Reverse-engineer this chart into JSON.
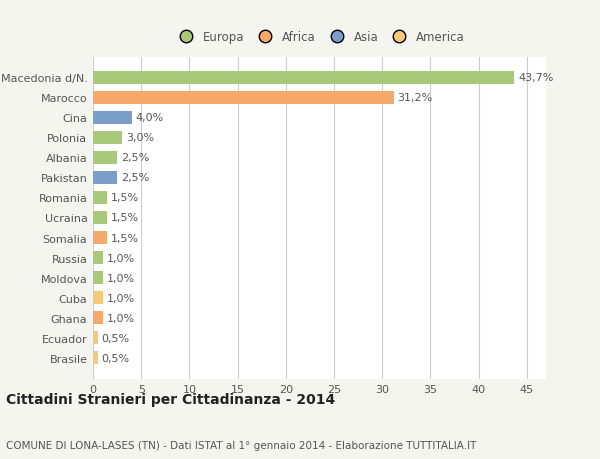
{
  "categories": [
    "Brasile",
    "Ecuador",
    "Ghana",
    "Cuba",
    "Moldova",
    "Russia",
    "Somalia",
    "Ucraina",
    "Romania",
    "Pakistan",
    "Albania",
    "Polonia",
    "Cina",
    "Marocco",
    "Macedonia d/N."
  ],
  "values": [
    0.5,
    0.5,
    1.0,
    1.0,
    1.0,
    1.0,
    1.5,
    1.5,
    1.5,
    2.5,
    2.5,
    3.0,
    4.0,
    31.2,
    43.7
  ],
  "colors": [
    "#f5c97a",
    "#f5c97a",
    "#f5a96a",
    "#f5c97a",
    "#a8c97a",
    "#a8c97a",
    "#f5a96a",
    "#a8c97a",
    "#a8c97a",
    "#7a9ec9",
    "#a8c97a",
    "#a8c97a",
    "#7a9ec9",
    "#f5a96a",
    "#a8c97a"
  ],
  "labels": [
    "0,5%",
    "0,5%",
    "1,0%",
    "1,0%",
    "1,0%",
    "1,0%",
    "1,5%",
    "1,5%",
    "1,5%",
    "2,5%",
    "2,5%",
    "3,0%",
    "4,0%",
    "31,2%",
    "43,7%"
  ],
  "legend": [
    {
      "label": "Europa",
      "color": "#a8c97a"
    },
    {
      "label": "Africa",
      "color": "#f5a96a"
    },
    {
      "label": "Asia",
      "color": "#7a9ec9"
    },
    {
      "label": "America",
      "color": "#f5c97a"
    }
  ],
  "title": "Cittadini Stranieri per Cittadinanza - 2014",
  "subtitle": "COMUNE DI LONA-LASES (TN) - Dati ISTAT al 1° gennaio 2014 - Elaborazione TUTTITALIA.IT",
  "xlim": [
    0,
    47
  ],
  "xticks": [
    0,
    5,
    10,
    15,
    20,
    25,
    30,
    35,
    40,
    45
  ],
  "background_color": "#f5f5f0",
  "plot_background": "#ffffff",
  "grid_color": "#cccccc",
  "text_color": "#555555",
  "title_fontsize": 10,
  "subtitle_fontsize": 7.5,
  "label_fontsize": 8,
  "tick_fontsize": 8,
  "bar_height": 0.62
}
